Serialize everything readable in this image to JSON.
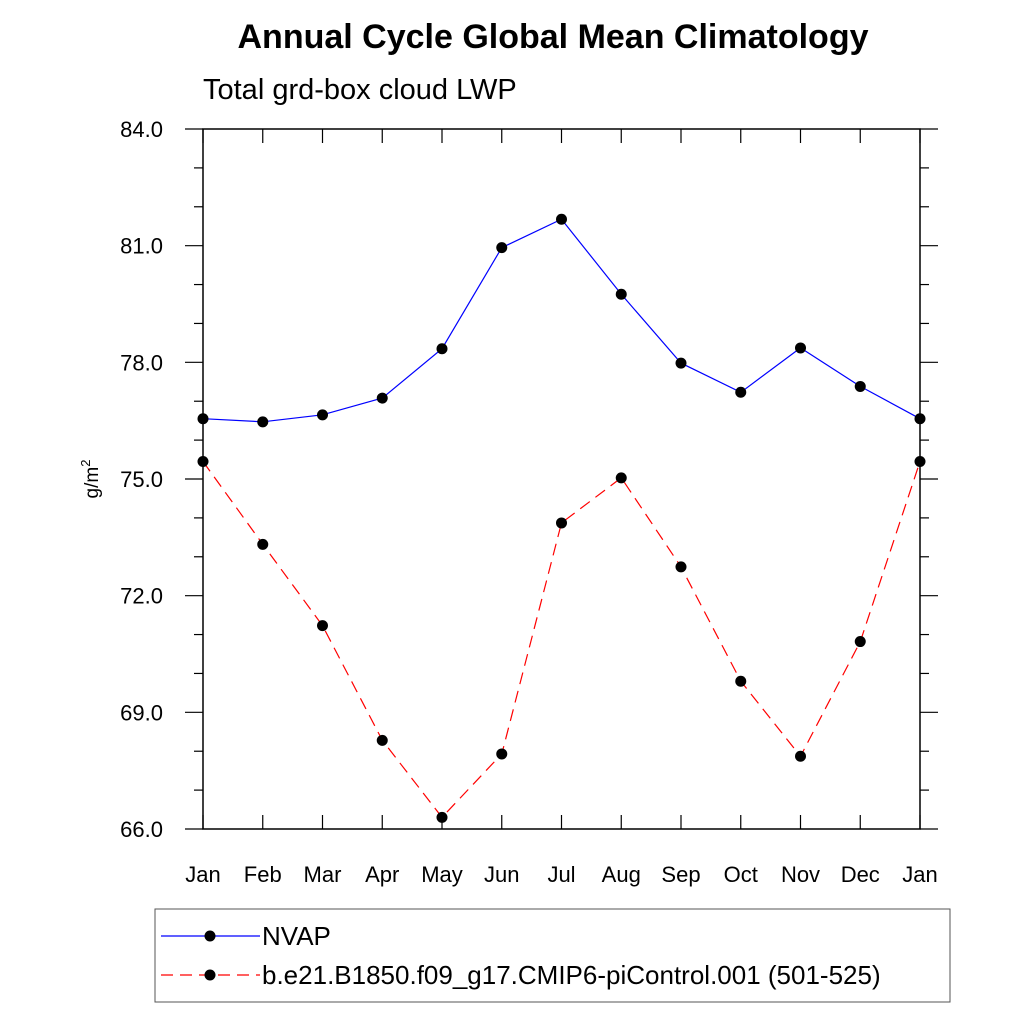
{
  "chart_data": {
    "type": "line",
    "title": "Annual Cycle Global Mean Climatology",
    "subtitle": "Total grd-box cloud LWP",
    "xlabel": "",
    "ylabel": "g/m",
    "ylabel_superscript": "2",
    "categories": [
      "Jan",
      "Feb",
      "Mar",
      "Apr",
      "May",
      "Jun",
      "Jul",
      "Aug",
      "Sep",
      "Oct",
      "Nov",
      "Dec",
      "Jan"
    ],
    "ylim": [
      66.0,
      84.0
    ],
    "yticks": [
      "66.0",
      "69.0",
      "72.0",
      "75.0",
      "78.0",
      "81.0",
      "84.0"
    ],
    "grid": false,
    "legend_position": "bottom",
    "series": [
      {
        "name": "NVAP",
        "color": "#0000ff",
        "dash": "solid",
        "marker": "filled-circle",
        "values": [
          76.55,
          76.47,
          76.65,
          77.08,
          78.35,
          80.95,
          81.68,
          79.75,
          77.98,
          77.23,
          78.37,
          77.38,
          76.55
        ]
      },
      {
        "name": "b.e21.B1850.f09_g17.CMIP6-piControl.001 (501-525)",
        "color": "#ff0000",
        "dash": "dashed",
        "marker": "filled-circle",
        "values": [
          75.45,
          73.32,
          71.23,
          68.28,
          66.3,
          67.93,
          73.87,
          75.03,
          72.74,
          69.8,
          67.87,
          70.82,
          75.45
        ]
      }
    ]
  }
}
